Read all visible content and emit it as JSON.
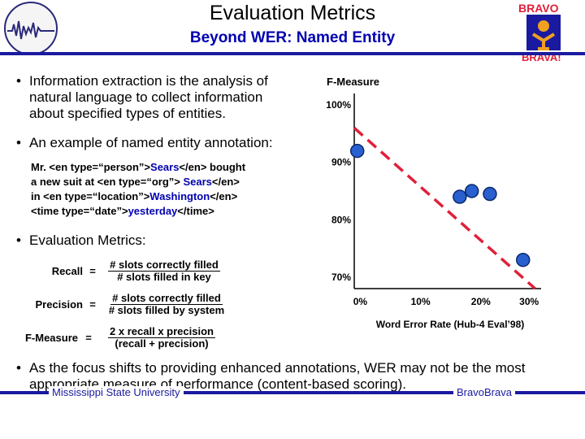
{
  "header": {
    "title": "Evaluation Metrics",
    "subtitle": "Beyond WER: Named Entity"
  },
  "bullets": [
    "Information extraction is the analysis of natural language to collect information about specified types of entities.",
    "An example of named entity annotation:",
    "Evaluation Metrics:",
    "As the focus shifts to providing enhanced annotations, WER may not be the most appropriate measure of performance (content-based scoring)."
  ],
  "annotation_example": {
    "line1_a": "Mr. <en type=“person”>",
    "line1_b": "Sears",
    "line1_c": "</en> bought",
    "line2_a": "a new suit at <en type=“org”> ",
    "line2_b": "Sears",
    "line2_c": "</en>",
    "line3_a": "in <en type=“location”>",
    "line3_b": "Washington",
    "line3_c": "</en>",
    "line4_a": "<time type=“date”>",
    "line4_b": "yesterday",
    "line4_c": "</time>"
  },
  "metrics": {
    "recall_label": "Recall",
    "recall_num": "# slots correctly filled",
    "recall_den": "# slots filled in key",
    "precision_label": "Precision",
    "precision_num": "# slots correctly filled",
    "precision_den": "# slots filled by system",
    "fmeasure_label": "F-Measure",
    "fmeasure_num": "2 x recall x precision",
    "fmeasure_den": "(recall + precision)",
    "equals": "="
  },
  "footer": {
    "left": "Mississippi State University",
    "right": "BravoBrava"
  },
  "logos": {
    "right_top": "BRAVO",
    "right_bottom": "BRAVA!"
  },
  "colors": {
    "accent": "#1a1aa0",
    "subtitle": "#0000b0",
    "marker": "#2a5fcf",
    "trend": "#e0203a"
  },
  "chart_data": {
    "type": "scatter",
    "ylabel": "F-Measure",
    "xlabel": "Word Error Rate (Hub-4 Eval’98)",
    "x_ticks": [
      "0%",
      "10%",
      "20%",
      "30%"
    ],
    "y_ticks": [
      "70%",
      "80%",
      "90%",
      "100%"
    ],
    "xlim": [
      0,
      31
    ],
    "ylim": [
      68,
      102
    ],
    "points": [
      {
        "x": 0.5,
        "y": 92
      },
      {
        "x": 17.5,
        "y": 84
      },
      {
        "x": 19.5,
        "y": 85
      },
      {
        "x": 22.5,
        "y": 84.5
      },
      {
        "x": 28,
        "y": 73
      }
    ],
    "trend": {
      "x": [
        0,
        30
      ],
      "y": [
        96,
        68
      ]
    }
  }
}
